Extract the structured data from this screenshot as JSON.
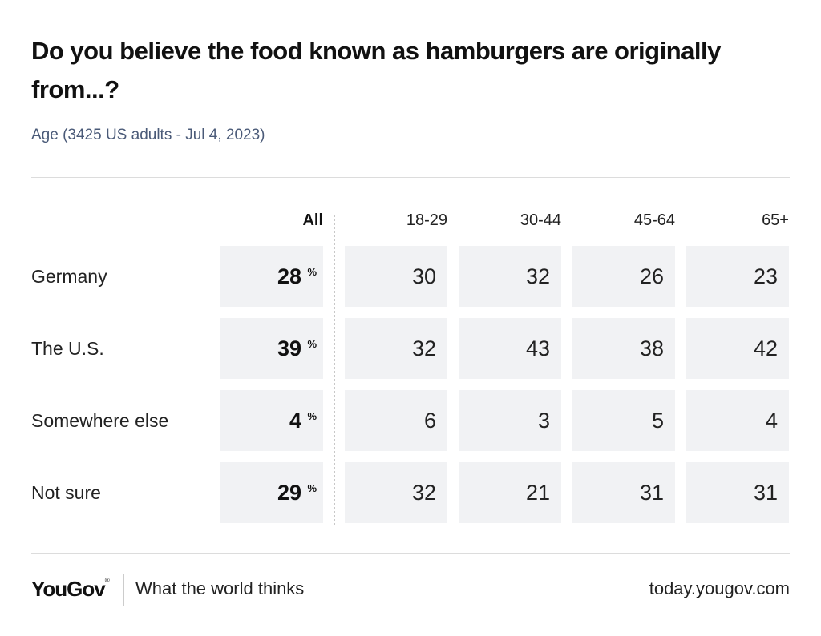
{
  "header": {
    "title": "Do you believe the food known as hamburgers are originally from...?",
    "subtitle": "Age (3425 US adults - Jul 4, 2023)"
  },
  "chart_data": {
    "type": "table",
    "title": "Do you believe the food known as hamburgers are originally from...?",
    "subtitle": "Age (3425 US adults - Jul 4, 2023)",
    "columns": [
      "All",
      "18-29",
      "30-44",
      "45-64",
      "65+"
    ],
    "unit": "%",
    "rows": [
      {
        "label": "Germany",
        "values": [
          28,
          30,
          32,
          26,
          23
        ]
      },
      {
        "label": "The U.S.",
        "values": [
          39,
          32,
          43,
          38,
          42
        ]
      },
      {
        "label": "Somewhere else",
        "values": [
          4,
          6,
          3,
          5,
          4
        ]
      },
      {
        "label": "Not sure",
        "values": [
          29,
          32,
          21,
          31,
          31
        ]
      }
    ]
  },
  "footer": {
    "logo": "YouGov",
    "logo_mark": "®",
    "tagline": "What the world thinks",
    "url": "today.yougov.com"
  },
  "colors": {
    "cell_background": "#f1f2f4",
    "subtitle": "#4a5a78",
    "rule": "#dcdcdc"
  }
}
